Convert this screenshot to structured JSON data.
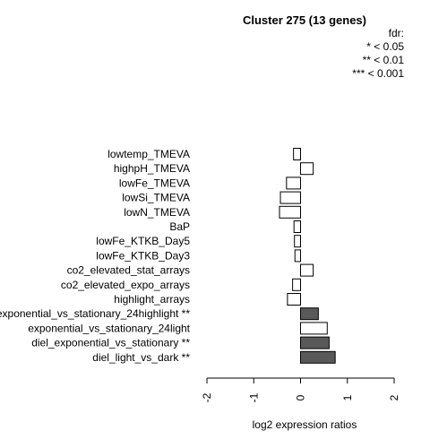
{
  "chart_data": {
    "type": "bar",
    "orientation": "horizontal",
    "title": "Cluster 275 (13 genes)",
    "xlabel": "log2 expression ratios",
    "ylabel": "",
    "xlim": [
      -2,
      2
    ],
    "xticks": [
      "-2",
      "-1",
      "0",
      "1",
      "2"
    ],
    "xtick_values": [
      -2,
      -1,
      0,
      1,
      2
    ],
    "grid": false,
    "legend": {
      "placement": "top-right",
      "title": "fdr:",
      "entries": [
        "* < 0.05",
        "** < 0.01",
        "*** < 0.001"
      ]
    },
    "colors": {
      "significant": "#595959",
      "non_significant": "#ffffff",
      "stroke": "#000000"
    },
    "categories": [
      "lowtemp_TMEVA",
      "highpH_TMEVA",
      "lowFe_TMEVA",
      "lowSi_TMEVA",
      "lowN_TMEVA",
      "BaP",
      "lowFe_KTKB_Day5",
      "lowFe_KTKB_Day3",
      "co2_elevated_stat_arrays",
      "co2_elevated_expo_arrays",
      "highlight_arrays",
      "exponential_vs_stationary_24highlight **",
      "exponential_vs_stationary_24light",
      "diel_exponential_vs_stationary **",
      "diel_light_vs_dark **"
    ],
    "values": [
      -0.15,
      0.27,
      -0.3,
      -0.43,
      -0.45,
      -0.14,
      -0.13,
      -0.12,
      0.27,
      -0.17,
      -0.28,
      0.38,
      0.57,
      0.61,
      0.74
    ],
    "significant": [
      false,
      false,
      false,
      false,
      false,
      false,
      false,
      false,
      false,
      false,
      false,
      true,
      false,
      true,
      true
    ]
  }
}
